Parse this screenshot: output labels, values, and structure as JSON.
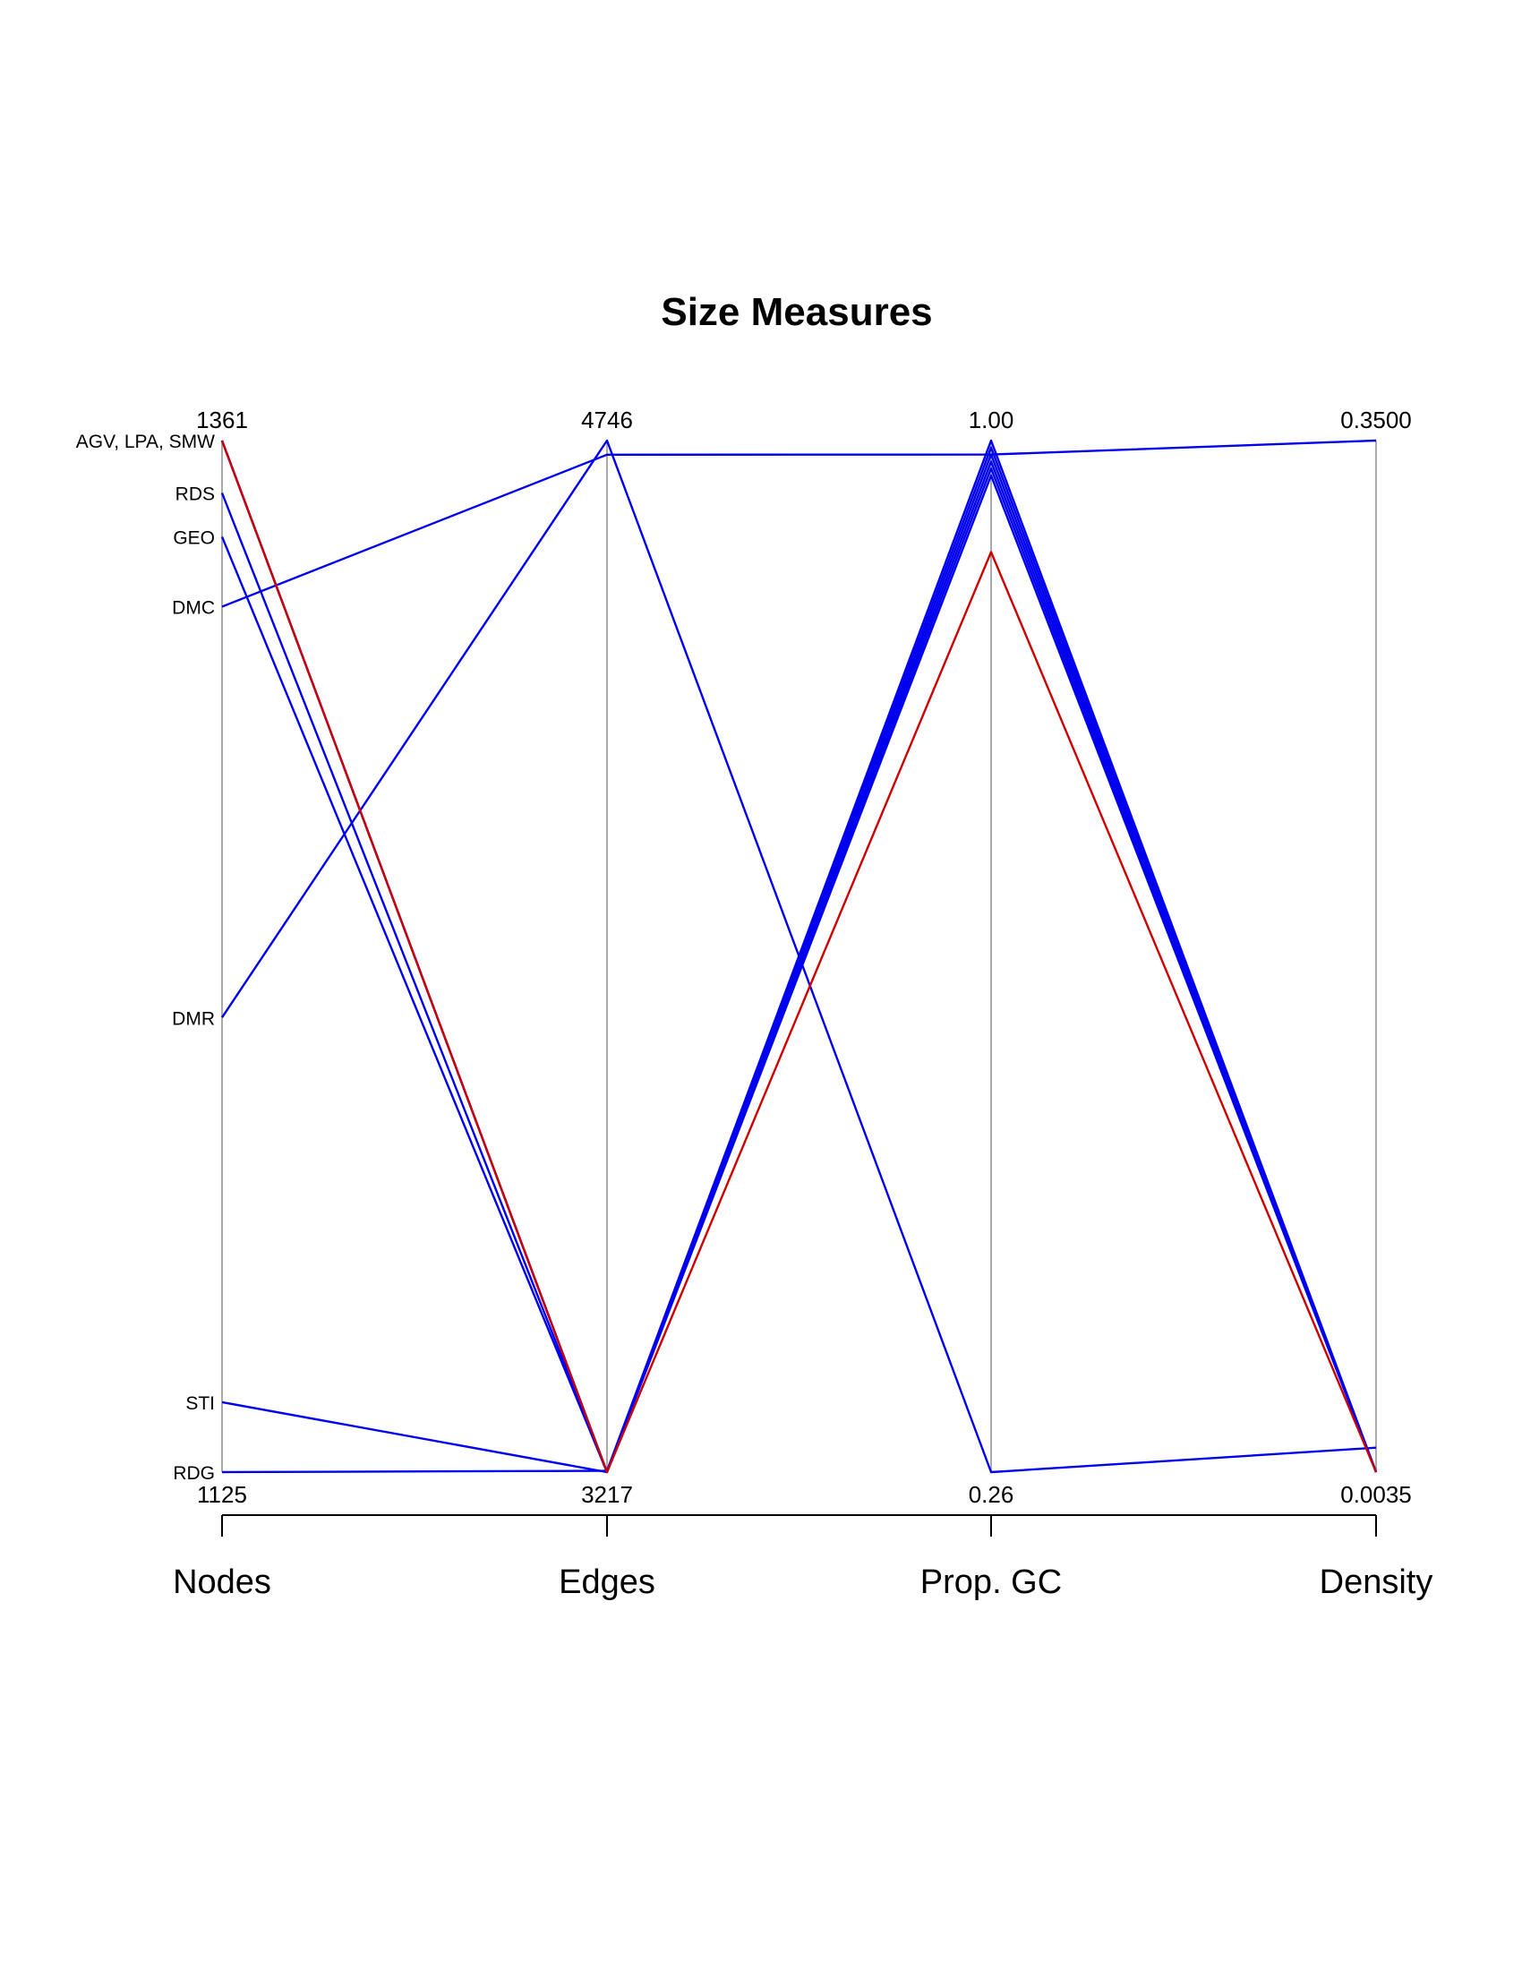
{
  "chart_data": {
    "type": "parallel-coordinates",
    "title": "Size Measures",
    "axes": [
      {
        "name": "Nodes",
        "min": 1125,
        "max": 1361,
        "min_label": "1125",
        "max_label": "1361"
      },
      {
        "name": "Edges",
        "min": 3217,
        "max": 4746,
        "min_label": "3217",
        "max_label": "4746"
      },
      {
        "name": "Prop. GC",
        "min": 0.26,
        "max": 1.0,
        "min_label": "0.26",
        "max_label": "1.00"
      },
      {
        "name": "Density",
        "min": 0.0035,
        "max": 0.35,
        "min_label": "0.0035",
        "max_label": "0.3500"
      }
    ],
    "node_labels": [
      {
        "text": "AGV, LPA, SMW",
        "value": 1361
      },
      {
        "text": "RDS",
        "value": 1349
      },
      {
        "text": "GEO",
        "value": 1339
      },
      {
        "text": "DMC",
        "value": 1323
      },
      {
        "text": "DMR",
        "value": 1229
      },
      {
        "text": "STI",
        "value": 1141
      },
      {
        "text": "RDG",
        "value": 1125
      }
    ],
    "series": [
      {
        "values": [
          1361,
          3217,
          0.92,
          0.0035
        ],
        "color": "#cc0000"
      },
      {
        "values": [
          1361,
          3217,
          0.99,
          0.0035
        ],
        "color": "#0000ee"
      },
      {
        "values": [
          1361,
          3217,
          0.985,
          0.0035
        ],
        "color": "#0000ee"
      },
      {
        "values": [
          1349,
          3217,
          0.98,
          0.0035
        ],
        "color": "#0000ee"
      },
      {
        "values": [
          1339,
          3217,
          0.975,
          0.0035
        ],
        "color": "#0000ee"
      },
      {
        "values": [
          1323,
          4725,
          0.99,
          0.35
        ],
        "color": "#0000ee"
      },
      {
        "values": [
          1229,
          4746,
          0.26,
          0.0117
        ],
        "color": "#0000ee"
      },
      {
        "values": [
          1141,
          3217,
          0.995,
          0.0035
        ],
        "color": "#0000ee"
      },
      {
        "values": [
          1125,
          3219,
          1.0,
          0.0035
        ],
        "color": "#0000ee"
      }
    ],
    "axis_color": "#aaaaaa"
  }
}
